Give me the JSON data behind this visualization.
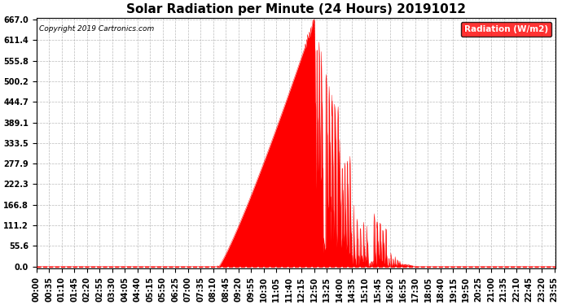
{
  "title": "Solar Radiation per Minute (24 Hours) 20191012",
  "copyright": "Copyright 2019 Cartronics.com",
  "legend_label": "Radiation (W/m2)",
  "ylabel_values": [
    0.0,
    55.6,
    111.2,
    166.8,
    222.3,
    277.9,
    333.5,
    389.1,
    444.7,
    500.2,
    555.8,
    611.4,
    667.0
  ],
  "ymax": 667.0,
  "ymin": 0.0,
  "fill_color": "#FF0000",
  "line_color": "#FF0000",
  "background_color": "#FFFFFF",
  "grid_color": "#AAAAAA",
  "dashed_line_color": "#FF0000",
  "title_fontsize": 11,
  "tick_fontsize": 7,
  "total_minutes": 1440,
  "sunrise_minute": 505,
  "sunset_minute": 1080,
  "peak_minute": 770,
  "peak_value": 667.0
}
